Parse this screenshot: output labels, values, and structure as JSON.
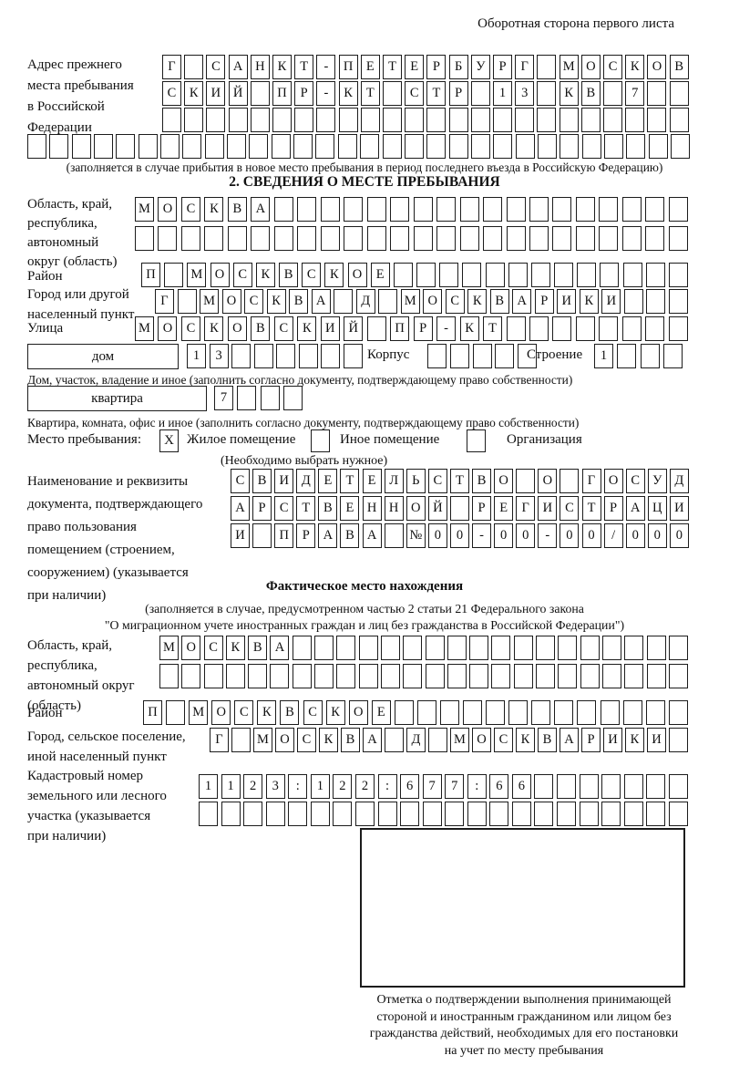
{
  "header_note": "Оборотная сторона первого листа",
  "prev_address": {
    "label_lines": [
      "Адрес прежнего",
      "места пребывания",
      "в Российской",
      "Федерации"
    ],
    "row1": {
      "chars": "Г САНКТ-ПЕТЕРБУРГ МОСКОВ",
      "n": 24
    },
    "row2": {
      "chars": "СКИЙ ПР-КТ СТР 13 КВ 7",
      "n": 24
    },
    "row3": {
      "chars": "",
      "n": 24
    },
    "row4": {
      "chars": "",
      "n": 30
    },
    "caption": "(заполняется в случае прибытия в новое место пребывания в период последнего въезда в Российскую Федерацию)"
  },
  "section2": {
    "title": "2. СВЕДЕНИЯ О МЕСТЕ ПРЕБЫВАНИЯ",
    "oblast": {
      "label_lines": [
        "Область, край,",
        "республика,",
        "автономный",
        "округ (область)"
      ],
      "row1": {
        "chars": "МОСКВА",
        "n": 24
      },
      "row2": {
        "chars": "",
        "n": 24
      }
    },
    "raion": {
      "label": "Район",
      "row": {
        "chars": "П МОСКВСКОЕ",
        "n": 24
      }
    },
    "gorod": {
      "label_lines": [
        "Город или другой",
        "населенный пункт"
      ],
      "row": {
        "chars": "Г МОСКВА Д МОСКВАРИКИ",
        "n": 24
      }
    },
    "ulitsa": {
      "label": "Улица",
      "row": {
        "chars": "МОСКОВСКИЙ ПР-КТ",
        "n": 24
      }
    },
    "dom": {
      "box_label": "дом",
      "cells": {
        "chars": "13",
        "n": 8
      },
      "korpus_label": "Корпус",
      "korpus_cells": {
        "chars": "",
        "n": 5
      },
      "stroenie_label": "Строение",
      "stroenie_cells": {
        "chars": "1",
        "n": 4
      },
      "caption": "Дом, участок, владение и иное (заполнить согласно документу, подтверждающему право собственности)"
    },
    "kvartira": {
      "box_label": "квартира",
      "cells": {
        "chars": "7",
        "n": 4
      },
      "caption": "Квартира, комната, офис и иное (заполнить согласно документу, подтверждающему право собственности)"
    },
    "stay_type": {
      "label": "Место пребывания:",
      "options": [
        {
          "label": "Жилое помещение",
          "mark": "X"
        },
        {
          "label": "Иное помещение",
          "mark": ""
        },
        {
          "label": "Организация",
          "mark": ""
        }
      ],
      "note": "(Необходимо выбрать нужное)"
    },
    "doc": {
      "label_lines": [
        "Наименование и реквизиты",
        "документа, подтверждающего",
        "право пользования",
        "помещением (строением,",
        "сооружением) (указывается",
        "при наличии)"
      ],
      "row1": {
        "chars": "СВИДЕТЕЛЬСТВО О ГОСУД",
        "n": 21
      },
      "row2": {
        "chars": "АРСТВЕННОЙ РЕГИСТРАЦИ",
        "n": 21
      },
      "row3": {
        "chars": "И ПРАВА №00-00-00/000",
        "n": 21
      }
    }
  },
  "actual_location": {
    "title": "Фактическое место нахождения",
    "note_lines": [
      "(заполняется в случае, предусмотренном частью 2 статьи 21 Федерального закона",
      "\"О миграционном учете иностранных граждан и лиц без гражданства в Российской Федерации\")"
    ],
    "oblast": {
      "label_lines": [
        "Область, край,",
        "республика,",
        "автономный округ",
        "(область)"
      ],
      "row1": {
        "chars": "МОСКВА",
        "n": 24
      },
      "row2": {
        "chars": "",
        "n": 24
      }
    },
    "raion": {
      "label": "Район",
      "row": {
        "chars": "П МОСКВСКОЕ",
        "n": 24
      }
    },
    "gorod": {
      "label_lines": [
        "Город, сельское поселение,",
        "иной населенный пункт"
      ],
      "row": {
        "chars": "Г МОСКВА Д МОСКВАРИКИ",
        "n": 22
      }
    },
    "cadastre": {
      "label_lines": [
        "Кадастровый номер",
        "земельного или лесного",
        "участка (указывается",
        "при наличии)"
      ],
      "row1": {
        "chars": "1123:122:677:66",
        "n": 22
      },
      "row2": {
        "chars": "",
        "n": 22
      }
    }
  },
  "stamp": {
    "caption_lines": [
      "Отметка о подтверждении выполнения принимающей",
      "стороной и иностранным гражданином или лицом без",
      "гражданства действий, необходимых для его постановки",
      "на учет по месту пребывания"
    ]
  }
}
